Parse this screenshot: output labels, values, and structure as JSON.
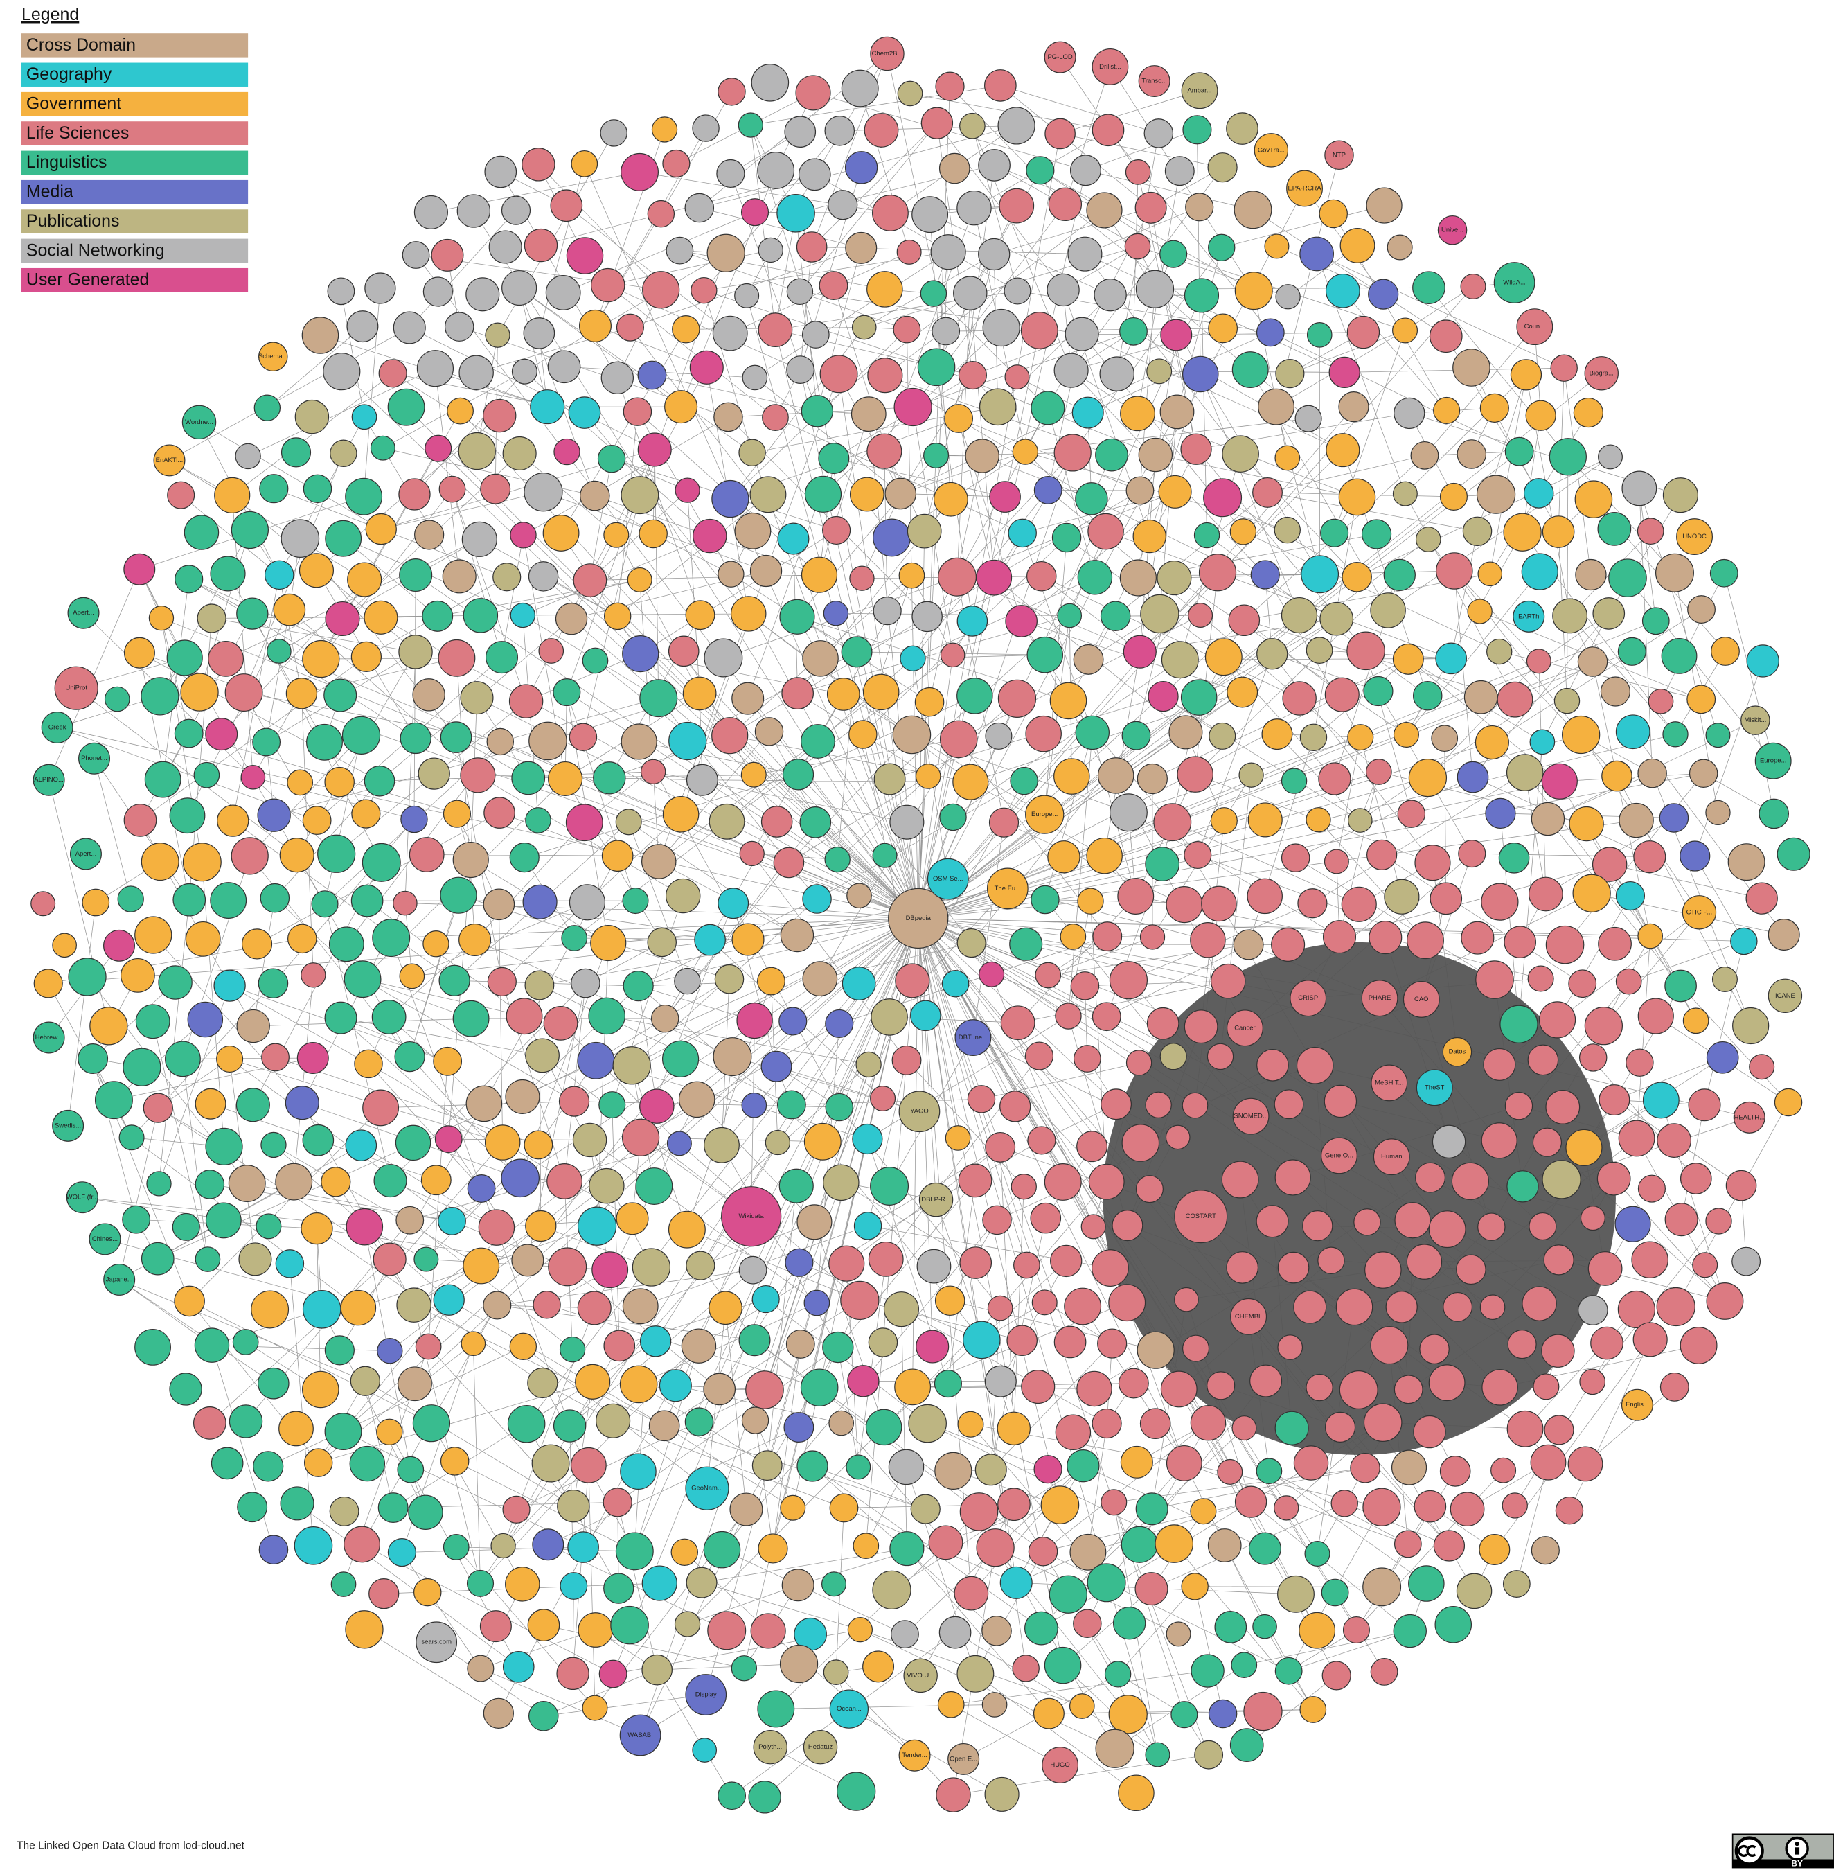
{
  "legend": {
    "title": "Legend",
    "items": [
      {
        "name": "Cross Domain",
        "color": "#c9a98a"
      },
      {
        "name": "Geography",
        "color": "#2ec7cf"
      },
      {
        "name": "Government",
        "color": "#f5b13f"
      },
      {
        "name": "Life Sciences",
        "color": "#dc7a82"
      },
      {
        "name": "Linguistics",
        "color": "#39bc8f"
      },
      {
        "name": "Media",
        "color": "#6872c8"
      },
      {
        "name": "Publications",
        "color": "#bdb582"
      },
      {
        "name": "Social Networking",
        "color": "#b6b6b7"
      },
      {
        "name": "User Generated",
        "color": "#d94f8e"
      }
    ]
  },
  "nodes": [
    {
      "label": "DBpedia",
      "category": "Cross Domain"
    },
    {
      "label": "Wikidata",
      "category": "User Generated"
    },
    {
      "label": "GeoNam...",
      "category": "Geography"
    },
    {
      "label": "COSTART",
      "category": "Life Sciences"
    },
    {
      "label": "OSM Se...",
      "category": "Geography"
    },
    {
      "label": "UniProt",
      "category": "Life Sciences"
    },
    {
      "label": "Wordne...",
      "category": "Linguistics"
    },
    {
      "label": "sears.com",
      "category": "Social Networking"
    },
    {
      "label": "WASABI",
      "category": "Media"
    },
    {
      "label": "Display",
      "category": "Media"
    },
    {
      "label": "Ocean...",
      "category": "Geography"
    },
    {
      "label": "HUGO",
      "category": "Life Sciences"
    },
    {
      "label": "ICANE",
      "category": "Publications"
    },
    {
      "label": "Europe...",
      "category": "Linguistics"
    },
    {
      "label": "UNODC",
      "category": "Government"
    },
    {
      "label": "WildA...",
      "category": "Linguistics"
    },
    {
      "label": "Biogra...",
      "category": "Life Sciences"
    },
    {
      "label": "TheST",
      "category": "Geography"
    },
    {
      "label": "Datos",
      "category": "Government"
    },
    {
      "label": "SNOMED...",
      "category": "Life Sciences"
    },
    {
      "label": "Gene O...",
      "category": "Life Sciences"
    },
    {
      "label": "Human",
      "category": "Life Sciences"
    },
    {
      "label": "MeSH T...",
      "category": "Life Sciences"
    },
    {
      "label": "CRISP",
      "category": "Life Sciences"
    },
    {
      "label": "PHARE",
      "category": "Life Sciences"
    },
    {
      "label": "CAO",
      "category": "Life Sciences"
    },
    {
      "label": "Cancer",
      "category": "Life Sciences"
    },
    {
      "label": "CHEMBL",
      "category": "Life Sciences"
    },
    {
      "label": "YAGO",
      "category": "Publications"
    },
    {
      "label": "The Eu...",
      "category": "Government"
    },
    {
      "label": "Europe...",
      "category": "Government"
    },
    {
      "label": "DBTune...",
      "category": "Media"
    },
    {
      "label": "Apert...",
      "category": "Linguistics"
    },
    {
      "label": "Apert...",
      "category": "Linguistics"
    },
    {
      "label": "Greek",
      "category": "Linguistics"
    },
    {
      "label": "Phonet...",
      "category": "Linguistics"
    },
    {
      "label": "ALPINO...",
      "category": "Linguistics"
    },
    {
      "label": "Hebrew...",
      "category": "Linguistics"
    },
    {
      "label": "Swedis...",
      "category": "Linguistics"
    },
    {
      "label": "Japane...",
      "category": "Linguistics"
    },
    {
      "label": "Chines...",
      "category": "Linguistics"
    },
    {
      "label": "WOLF (fr...",
      "category": "Linguistics"
    },
    {
      "label": "Schema...",
      "category": "Government"
    },
    {
      "label": "EnAKTi...",
      "category": "Government"
    },
    {
      "label": "VIVO U...",
      "category": "Publications"
    },
    {
      "label": "Tender...",
      "category": "Government"
    },
    {
      "label": "Open E...",
      "category": "Cross Domain"
    },
    {
      "label": "Hedatuz",
      "category": "Publications"
    },
    {
      "label": "Polyth...",
      "category": "Publications"
    },
    {
      "label": "Chem2B...",
      "category": "Life Sciences"
    },
    {
      "label": "PG-LOD",
      "category": "Life Sciences"
    },
    {
      "label": "Drillst...",
      "category": "Life Sciences"
    },
    {
      "label": "Transc...",
      "category": "Life Sciences"
    },
    {
      "label": "Ambar...",
      "category": "Publications"
    },
    {
      "label": "EPA-RCRA",
      "category": "Government"
    },
    {
      "label": "NTP",
      "category": "Life Sciences"
    },
    {
      "label": "GovTra...",
      "category": "Government"
    },
    {
      "label": "Unive...",
      "category": "User Generated"
    },
    {
      "label": "Coun...",
      "category": "Life Sciences"
    },
    {
      "label": "EARTh",
      "category": "Geography"
    },
    {
      "label": "Miskit...",
      "category": "Publications"
    },
    {
      "label": "CTIC P...",
      "category": "Government"
    },
    {
      "label": "HEALTH...",
      "category": "Life Sciences"
    },
    {
      "label": "Englis...",
      "category": "Government"
    },
    {
      "label": "DBLP-R...",
      "category": "Publications"
    }
  ],
  "footer": "The Linked Open Data Cloud from lod-cloud.net",
  "license": "BY"
}
